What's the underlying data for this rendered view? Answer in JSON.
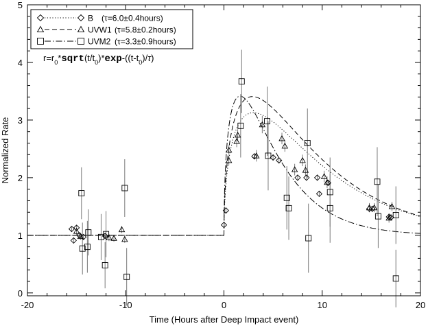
{
  "chart_data": {
    "type": "scatter",
    "xlabel": "Time (Hours after Deep Impact event)",
    "ylabel": "Normalized Rate",
    "xlim": [
      -20,
      20
    ],
    "ylim": [
      -0.05,
      5
    ],
    "xticks": [
      -20,
      -10,
      0,
      10,
      20
    ],
    "xtick_labels": [
      "-20",
      "-10",
      "0",
      "10",
      "20"
    ],
    "yticks": [
      0,
      1,
      2,
      3,
      4,
      5
    ],
    "ytick_labels": [
      "0",
      "1",
      "2",
      "3",
      "4",
      "5"
    ],
    "grid": false,
    "legend_position": "top-left",
    "model": {
      "text_parts": [
        "r=r",
        "0",
        "*",
        "sqrt",
        "(t/t",
        "0",
        ")*",
        "exp",
        "-((t-t",
        "0",
        ")/",
        "τ",
        ")"
      ],
      "baseline": 1.0
    },
    "series": [
      {
        "name": "B",
        "legend_label": "B",
        "legend_tau": "(τ=6.0±0.4hours)",
        "marker": "diamond",
        "line_style": "dotted",
        "tau": 6.0,
        "r0": 0.895,
        "points": [
          {
            "x": -15.5,
            "y": 1.11,
            "err": 0.05
          },
          {
            "x": -15.3,
            "y": 0.91,
            "err": 0.05
          },
          {
            "x": -15.0,
            "y": 1.13,
            "err": 0.05
          },
          {
            "x": -14.7,
            "y": 1.0,
            "err": 0.05
          },
          {
            "x": -14.3,
            "y": 0.97,
            "err": 0.05
          },
          {
            "x": -12.1,
            "y": 0.99,
            "err": 0.05
          },
          {
            "x": 0.0,
            "y": 1.18,
            "err": 0.05
          },
          {
            "x": 0.2,
            "y": 1.43,
            "err": 0.05
          },
          {
            "x": 3.1,
            "y": 2.37,
            "err": 0.05
          },
          {
            "x": 5.6,
            "y": 2.3,
            "err": 0.05
          },
          {
            "x": 7.5,
            "y": 2.0,
            "err": 0.05
          },
          {
            "x": 9.7,
            "y": 1.72,
            "err": 0.05
          },
          {
            "x": 14.8,
            "y": 1.46,
            "err": 0.05
          },
          {
            "x": 15.1,
            "y": 1.46,
            "err": 0.05
          },
          {
            "x": 16.8,
            "y": 1.32,
            "err": 0.05
          },
          {
            "x": 17.0,
            "y": 1.31,
            "err": 0.05
          },
          {
            "x": 5.0,
            "y": 2.35,
            "err": 0.05
          },
          {
            "x": 8.4,
            "y": 2.0,
            "err": 0.05
          },
          {
            "x": 9.5,
            "y": 2.0,
            "err": 0.05
          },
          {
            "x": 10.6,
            "y": 1.91,
            "err": 0.05
          }
        ]
      },
      {
        "name": "UVW1",
        "legend_label": "UVW1",
        "legend_tau": "(τ=5.8±0.2hours)",
        "marker": "triangle",
        "line_style": "dashed",
        "tau": 5.8,
        "r0": 1.03,
        "points": [
          {
            "x": -15.0,
            "y": 1.07,
            "err": 0.06
          },
          {
            "x": -14.6,
            "y": 0.98,
            "err": 0.06
          },
          {
            "x": -11.7,
            "y": 0.96,
            "err": 0.06
          },
          {
            "x": -11.2,
            "y": 0.95,
            "err": 0.06
          },
          {
            "x": -10.4,
            "y": 1.1,
            "err": 0.06
          },
          {
            "x": -10.1,
            "y": 0.93,
            "err": 0.06
          },
          {
            "x": 0.5,
            "y": 2.3,
            "err": 0.08
          },
          {
            "x": 0.5,
            "y": 2.48,
            "err": 0.08
          },
          {
            "x": 1.3,
            "y": 2.63,
            "err": 0.1
          },
          {
            "x": 1.4,
            "y": 2.74,
            "err": 0.1
          },
          {
            "x": 3.3,
            "y": 2.38,
            "err": 0.1
          },
          {
            "x": 3.9,
            "y": 2.92,
            "err": 0.15
          },
          {
            "x": 5.9,
            "y": 2.68,
            "err": 0.1
          },
          {
            "x": 6.2,
            "y": 2.55,
            "err": 0.1
          },
          {
            "x": 7.2,
            "y": 2.14,
            "err": 0.1
          },
          {
            "x": 8.0,
            "y": 2.3,
            "err": 0.1
          },
          {
            "x": 8.3,
            "y": 2.13,
            "err": 0.1
          },
          {
            "x": 10.2,
            "y": 2.02,
            "err": 0.1
          },
          {
            "x": 10.5,
            "y": 1.92,
            "err": 0.1
          },
          {
            "x": 14.8,
            "y": 1.48,
            "err": 0.08
          },
          {
            "x": 15.3,
            "y": 1.48,
            "err": 0.08
          },
          {
            "x": 16.8,
            "y": 1.3,
            "err": 0.08
          },
          {
            "x": 17.1,
            "y": 1.5,
            "err": 0.08
          }
        ]
      },
      {
        "name": "UVM2",
        "legend_label": "UVM2",
        "legend_tau": "(τ=3.3±0.9hours)",
        "marker": "square",
        "line_style": "dashdot",
        "tau": 3.3,
        "r0": 1.37,
        "points": [
          {
            "x": -14.5,
            "y": 1.73,
            "err": 0.45
          },
          {
            "x": -14.4,
            "y": 0.77,
            "err": 0.45
          },
          {
            "x": -13.9,
            "y": 0.8,
            "err": 0.45
          },
          {
            "x": -13.8,
            "y": 1.05,
            "err": 0.4
          },
          {
            "x": -12.5,
            "y": 0.97,
            "err": 0.4
          },
          {
            "x": -12.1,
            "y": 0.48,
            "err": 0.4
          },
          {
            "x": -12.0,
            "y": 1.02,
            "err": 0.4
          },
          {
            "x": -10.1,
            "y": 1.82,
            "err": 0.5
          },
          {
            "x": -9.9,
            "y": 0.28,
            "err": 0.5
          },
          {
            "x": 1.8,
            "y": 3.67,
            "err": 0.55
          },
          {
            "x": 1.7,
            "y": 2.9,
            "err": 0.55
          },
          {
            "x": 4.4,
            "y": 2.98,
            "err": 0.6
          },
          {
            "x": 4.5,
            "y": 2.38,
            "err": 0.6
          },
          {
            "x": 6.4,
            "y": 1.65,
            "err": 0.55
          },
          {
            "x": 6.6,
            "y": 1.47,
            "err": 0.55
          },
          {
            "x": 8.5,
            "y": 2.6,
            "err": 0.6
          },
          {
            "x": 8.6,
            "y": 0.95,
            "err": 0.6
          },
          {
            "x": 10.8,
            "y": 1.75,
            "err": 0.6
          },
          {
            "x": 10.8,
            "y": 1.47,
            "err": 0.6
          },
          {
            "x": 15.6,
            "y": 1.93,
            "err": 0.6
          },
          {
            "x": 15.7,
            "y": 1.33,
            "err": 0.55
          },
          {
            "x": 17.5,
            "y": 1.35,
            "err": 0.5
          },
          {
            "x": 17.5,
            "y": 0.25,
            "err": 0.5
          }
        ]
      }
    ]
  }
}
